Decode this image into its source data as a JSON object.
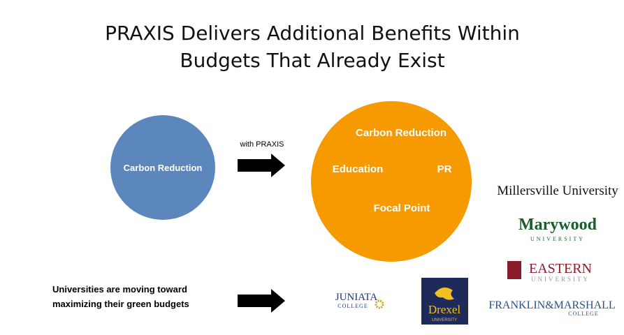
{
  "title": [
    "PRAXIS Delivers Additional Benefits Within",
    "Budgets That Already Exist"
  ],
  "left_circle": {
    "label": "Carbon Reduction"
  },
  "arrow_label": "with PRAXIS",
  "right_circle": {
    "labels": [
      "Carbon Reduction",
      "Education",
      "PR",
      "Focal Point"
    ]
  },
  "note": [
    "Universities are moving toward",
    "maximizing their green budgets"
  ],
  "logos": [
    {
      "name": "JUNIATA",
      "sub": "COLLEGE"
    },
    {
      "name": "Drexel",
      "sub": "UNIVERSITY"
    },
    {
      "name": "Millersville University"
    },
    {
      "name": "Marywood",
      "sub": "UNIVERSITY"
    },
    {
      "name": "EASTERN",
      "sub": "UNIVERSITY"
    },
    {
      "name": "FRANKLIN&MARSHALL",
      "sub": "COLLEGE"
    }
  ]
}
